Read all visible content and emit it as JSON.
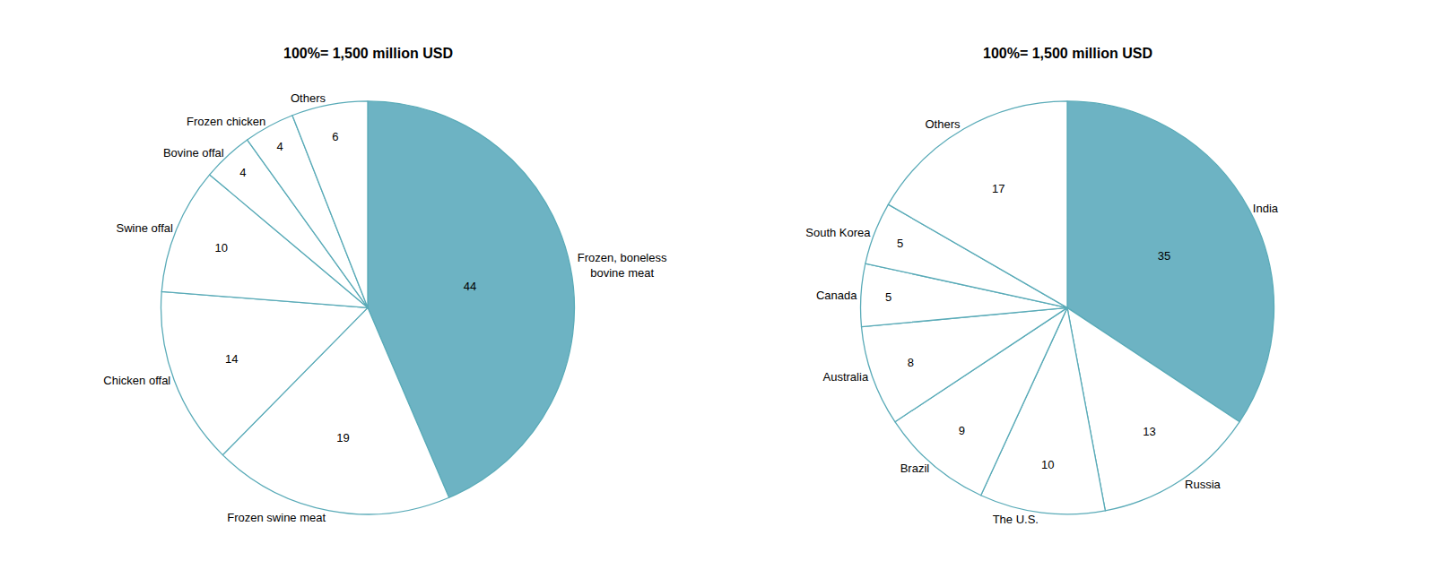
{
  "chart_data": [
    {
      "type": "pie",
      "title": "100%= 1,500 million USD",
      "categories": [
        "Frozen, boneless\nbovine meat",
        "Frozen swine meat",
        "Chicken offal",
        "Swine offal",
        "Bovine offal",
        "Frozen chicken",
        "Others"
      ],
      "values": [
        44,
        19,
        14,
        10,
        4,
        4,
        6
      ],
      "colors": [
        "#6db3c3",
        "#ffffff",
        "#ffffff",
        "#ffffff",
        "#ffffff",
        "#ffffff",
        "#ffffff"
      ],
      "data_labels": true
    },
    {
      "type": "pie",
      "title": "100%= 1,500 million USD",
      "categories": [
        "India",
        "Russia",
        "The U.S.",
        "Brazil",
        "Australia",
        "Canada",
        "South Korea",
        "Others"
      ],
      "values": [
        35,
        13,
        10,
        9,
        8,
        5,
        5,
        17
      ],
      "colors": [
        "#6db3c3",
        "#ffffff",
        "#ffffff",
        "#ffffff",
        "#ffffff",
        "#ffffff",
        "#ffffff",
        "#ffffff"
      ],
      "data_labels": true
    }
  ]
}
